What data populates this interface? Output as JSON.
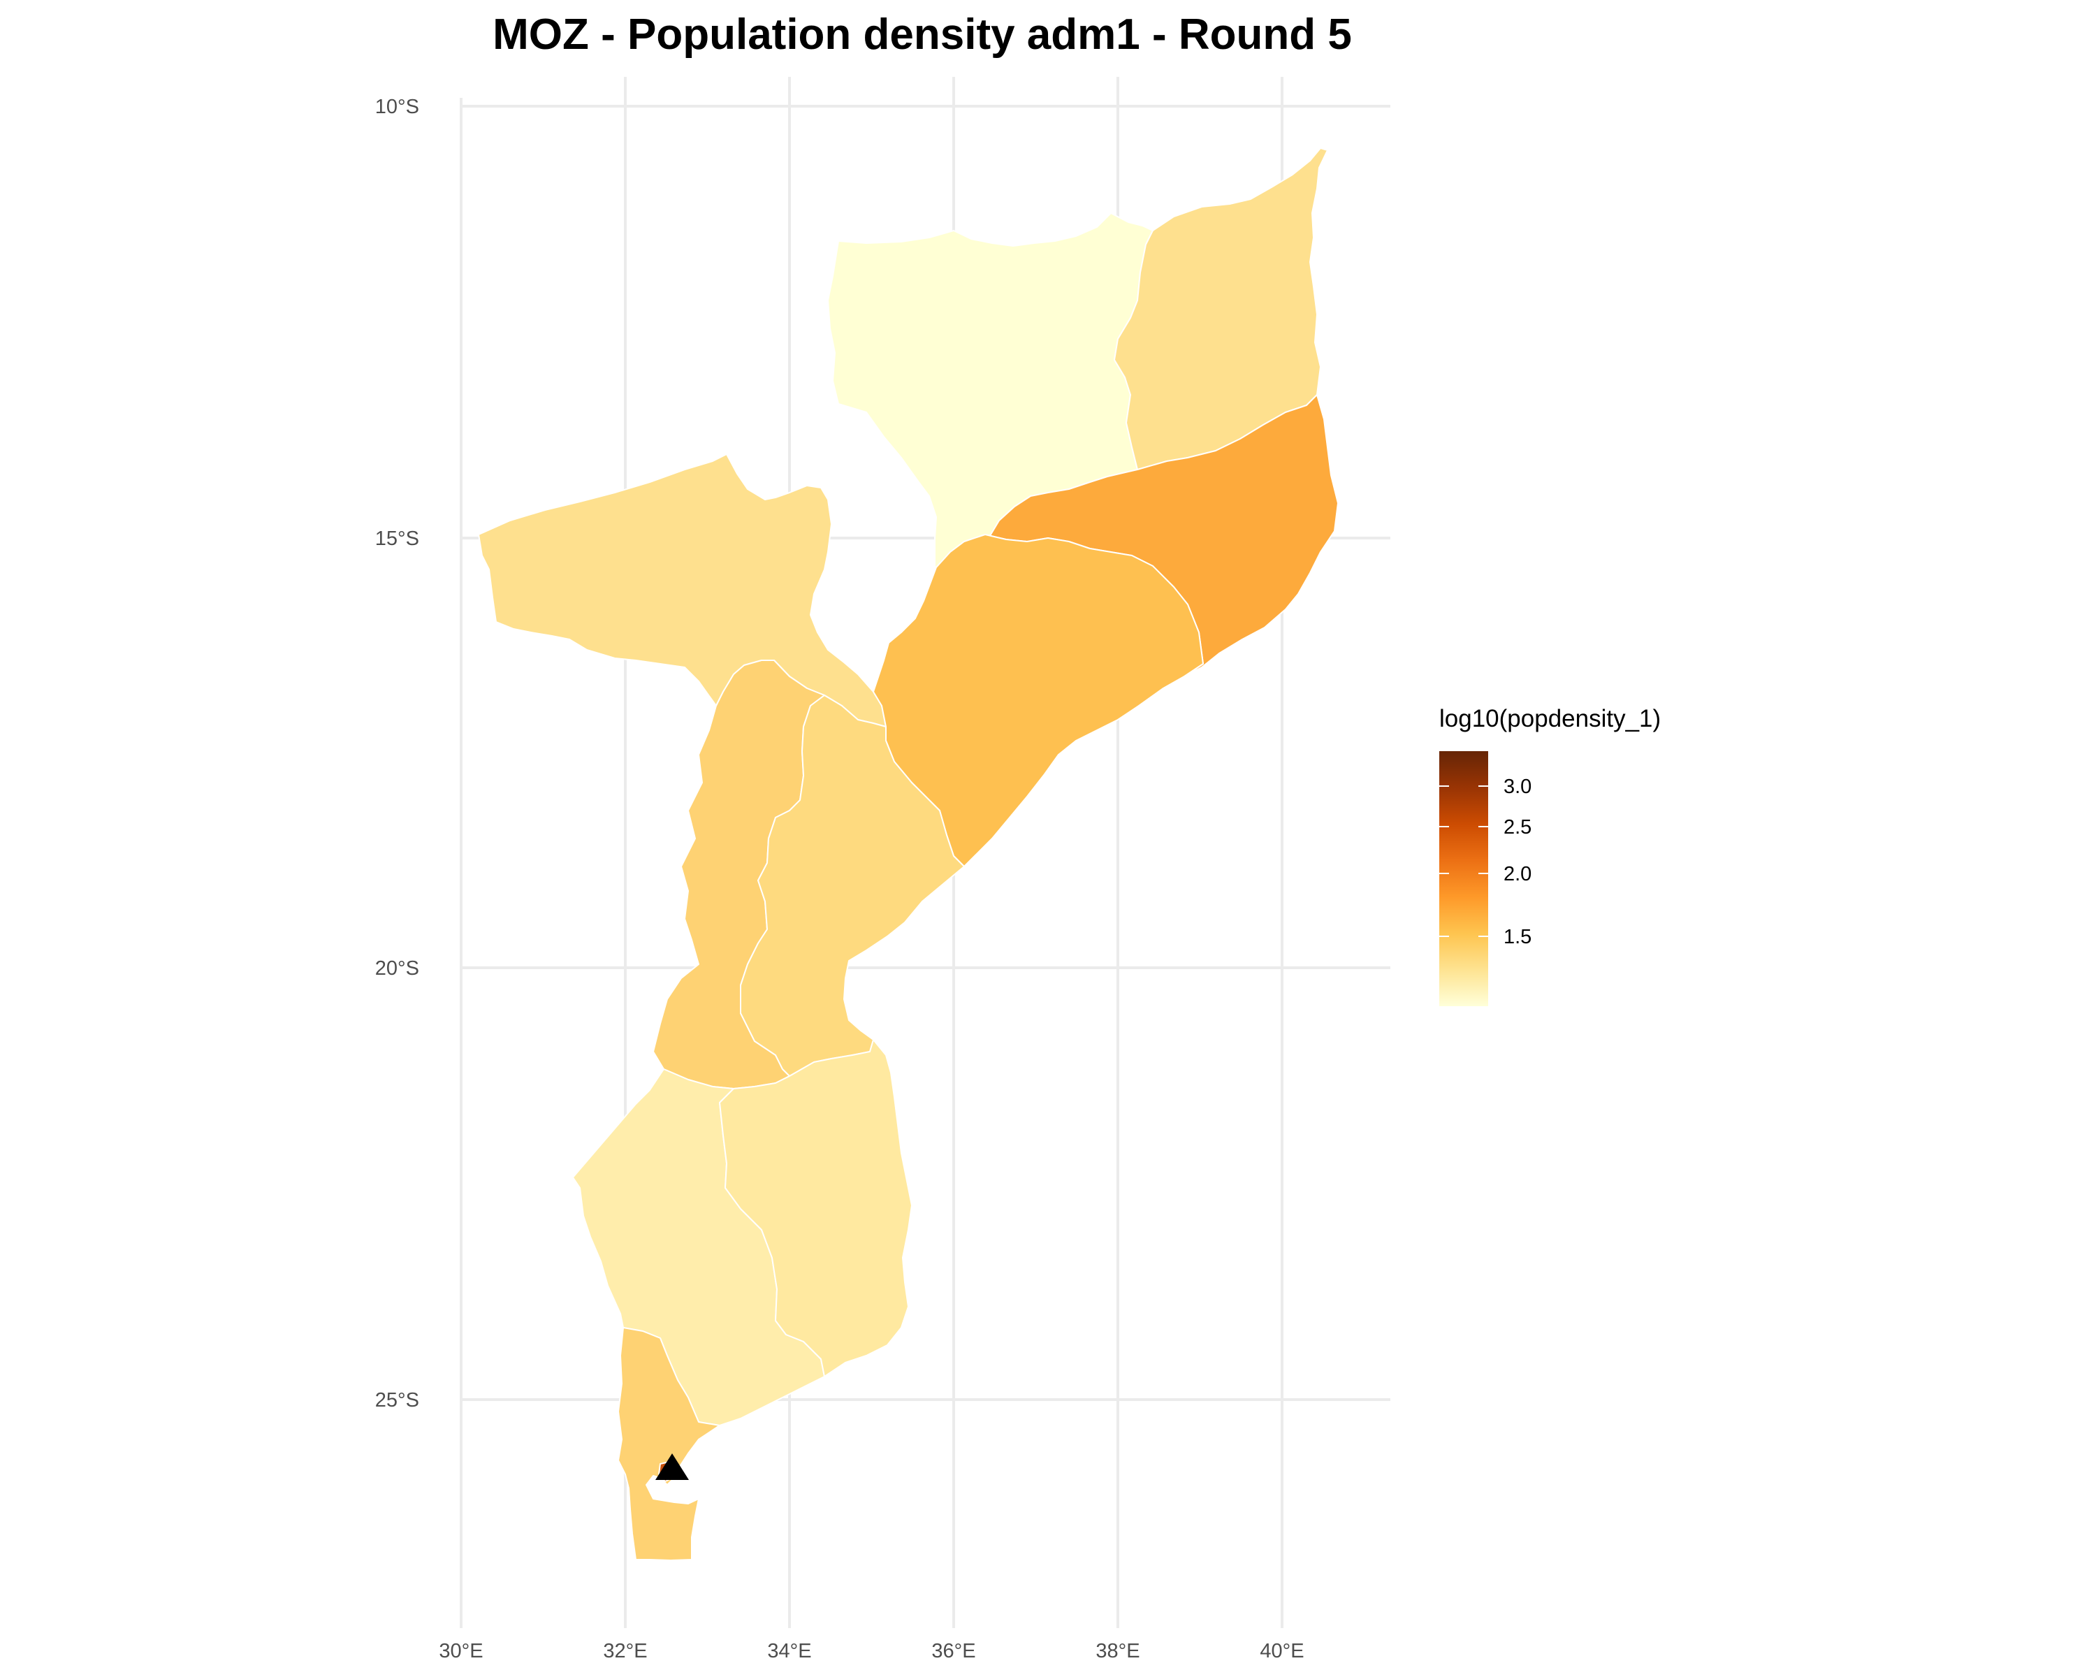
{
  "title": "MOZ - Population density adm1 - Round 5",
  "axes": {
    "x_ticks": [
      "30°E",
      "32°E",
      "34°E",
      "36°E",
      "38°E",
      "40°E"
    ],
    "y_ticks": [
      "10°S",
      "15°S",
      "20°S",
      "25°S"
    ],
    "grid": true
  },
  "legend": {
    "title": "log10(popdensity_1)",
    "ticks": [
      "3.0",
      "2.5",
      "2.0",
      "1.5"
    ],
    "placement": "right",
    "colors": [
      "#FFFFD9",
      "#FEE391",
      "#FEC44F",
      "#FE9929",
      "#EC7014",
      "#CC4C02",
      "#993404",
      "#662506"
    ]
  },
  "marker": {
    "shape": "triangle",
    "color": "#000000"
  },
  "provinces": [
    {
      "id": "niassa",
      "fill": "#FFFFD4"
    },
    {
      "id": "cabo-delgado",
      "fill": "#FEE08E"
    },
    {
      "id": "tete",
      "fill": "#FEE08E"
    },
    {
      "id": "nampula",
      "fill": "#FDAA3C"
    },
    {
      "id": "zambezia",
      "fill": "#FEC050"
    },
    {
      "id": "manica",
      "fill": "#FED273"
    },
    {
      "id": "sofala",
      "fill": "#FEDA7F"
    },
    {
      "id": "gaza",
      "fill": "#FFEDAB"
    },
    {
      "id": "inhambane",
      "fill": "#FFE9A0"
    },
    {
      "id": "maputo",
      "fill": "#FED273"
    },
    {
      "id": "maputo-city",
      "fill": "#C8500A"
    }
  ]
}
